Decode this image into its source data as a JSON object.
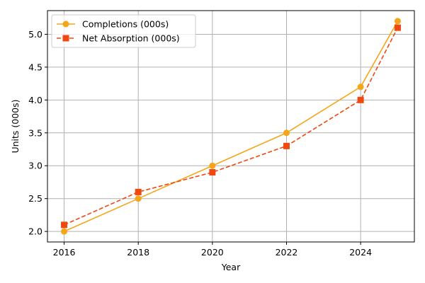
{
  "chart_data": {
    "type": "line",
    "title": "",
    "xlabel": "Year",
    "ylabel": "Units (000s)",
    "x": [
      2016,
      2018,
      2020,
      2022,
      2024,
      2025
    ],
    "x_ticks": [
      2016,
      2018,
      2020,
      2022,
      2024
    ],
    "y_ticks": [
      2.0,
      2.5,
      3.0,
      3.5,
      4.0,
      4.5,
      5.0
    ],
    "xlim": [
      2015.55,
      2025.45
    ],
    "ylim": [
      1.84,
      5.36
    ],
    "grid": true,
    "legend_position": "top-left",
    "series": [
      {
        "name": "Completions (000s)",
        "values": [
          2.0,
          2.5,
          3.0,
          3.5,
          4.2,
          5.2
        ],
        "color": "#f5a518",
        "line_style": "solid",
        "marker": "circle"
      },
      {
        "name": "Net Absorption (000s)",
        "values": [
          2.1,
          2.6,
          2.9,
          3.3,
          4.0,
          5.1
        ],
        "color": "#f0480f",
        "line_style": "dashed",
        "marker": "square"
      }
    ]
  }
}
